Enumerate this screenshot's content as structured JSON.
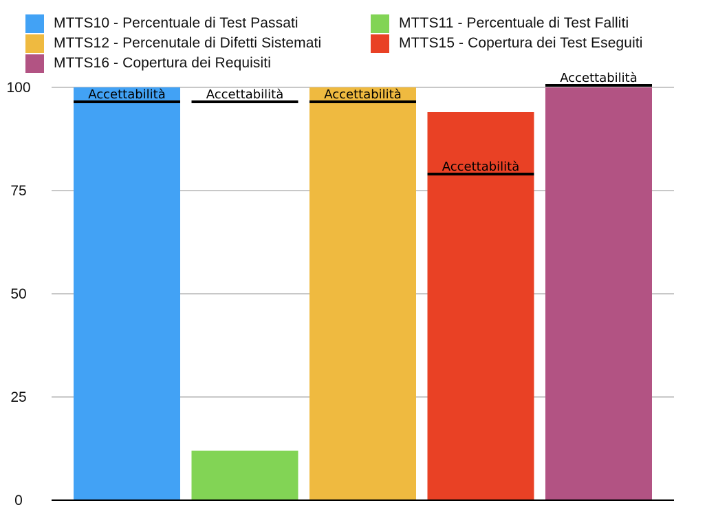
{
  "chart_data": {
    "type": "bar",
    "title": "",
    "xlabel": "",
    "ylabel": "",
    "ylim": [
      0,
      100
    ],
    "yticks": [
      "0",
      "25",
      "50",
      "75",
      "100"
    ],
    "grid": true,
    "legend_position": "top",
    "series": [
      {
        "name": "MTTS10 - Percentuale di Test Passati",
        "value": 100,
        "color": "#42A2F5",
        "threshold": 96.5,
        "threshold_label": "Accettabilità"
      },
      {
        "name": "MTTS11 - Percentuale di Test Falliti",
        "value": 12,
        "color": "#82D455",
        "threshold": 96.5,
        "threshold_label": "Accettabilità"
      },
      {
        "name": "MTTS12 - Percenutale di Difetti Sistemati",
        "value": 100,
        "color": "#EFBA40",
        "threshold": 96.5,
        "threshold_label": "Accettabilità"
      },
      {
        "name": "MTTS15 - Copertura dei Test Eseguiti",
        "value": 94,
        "color": "#E94125",
        "threshold": 79,
        "threshold_label": "Accettabilità"
      },
      {
        "name": "MTTS16 - Copertura dei Requisiti",
        "value": 100,
        "color": "#B25383",
        "threshold": 100.5,
        "threshold_label": "Accettabilità"
      }
    ]
  }
}
